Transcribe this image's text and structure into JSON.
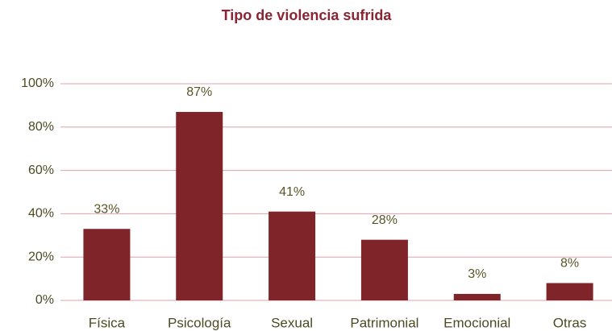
{
  "chart_data": {
    "type": "bar",
    "title": "Tipo de violencia sufrida",
    "categories": [
      "Física",
      "Psicología",
      "Sexual",
      "Patrimonial",
      "Emocionial",
      "Otras"
    ],
    "values": [
      33,
      87,
      41,
      28,
      3,
      8
    ],
    "value_labels": [
      "33%",
      "87%",
      "41%",
      "28%",
      "3%",
      "8%"
    ],
    "color": "#7f2428",
    "ylim": [
      0,
      100
    ],
    "yticks": [
      {
        "value": 0,
        "label": "0%"
      },
      {
        "value": 20,
        "label": "20%"
      },
      {
        "value": 40,
        "label": "40%"
      },
      {
        "value": 60,
        "label": "60%"
      },
      {
        "value": 80,
        "label": "80%"
      },
      {
        "value": 100,
        "label": "100%"
      }
    ],
    "grid": true
  }
}
